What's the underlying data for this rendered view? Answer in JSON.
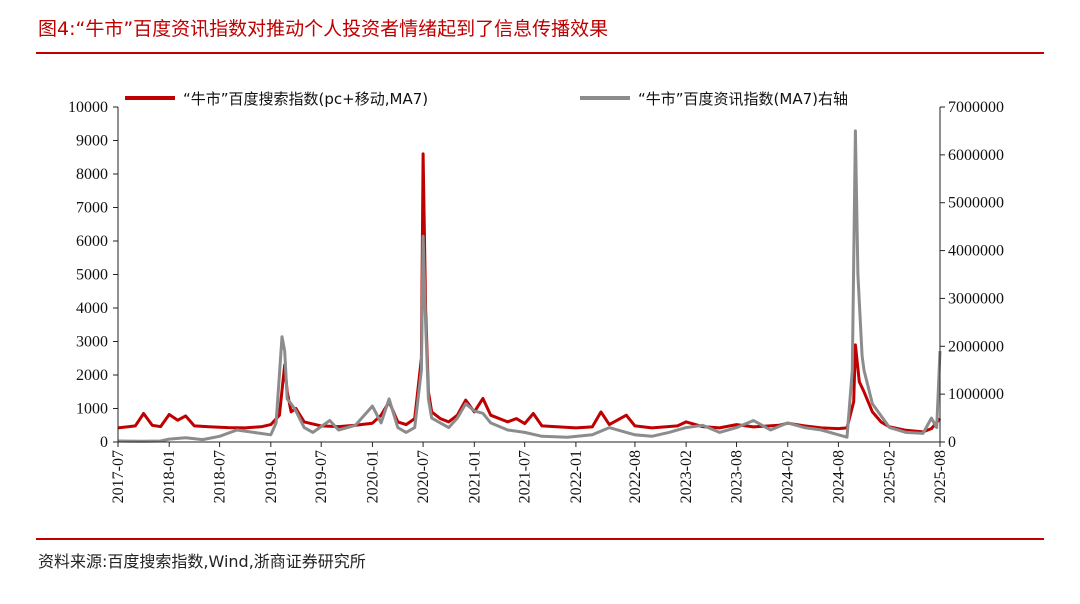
{
  "figure": {
    "title": "图4:“牛市”百度资讯指数对推动个人投资者情绪起到了信息传播效果",
    "source": "资料来源:百度搜索指数,Wind,浙商证券研究所"
  },
  "chart_data": {
    "type": "line",
    "title": "",
    "x_ticks": [
      "2017-07",
      "2018-01",
      "2018-07",
      "2019-01",
      "2019-07",
      "2020-01",
      "2020-07",
      "2021-01",
      "2021-07",
      "2022-01",
      "2022-08",
      "2023-02",
      "2023-08",
      "2024-02",
      "2024-08",
      "2025-02",
      "2025-08"
    ],
    "x_range": [
      "2017-07",
      "2025-08"
    ],
    "y_left": {
      "min": 0,
      "max": 10000,
      "ticks": [
        0,
        1000,
        2000,
        3000,
        4000,
        5000,
        6000,
        7000,
        8000,
        9000,
        10000
      ]
    },
    "y_right": {
      "min": 0,
      "max": 7000000,
      "ticks": [
        0,
        1000000,
        2000000,
        3000000,
        4000000,
        5000000,
        6000000,
        7000000
      ]
    },
    "legend_position": "top",
    "grid": false,
    "series": [
      {
        "name": "“牛市”百度搜索指数(pc+移动,MA7)",
        "axis": "left",
        "color": "#c00000",
        "points": [
          [
            "2017-07",
            420
          ],
          [
            "2017-09",
            480
          ],
          [
            "2017-10",
            850
          ],
          [
            "2017-11",
            500
          ],
          [
            "2017-12",
            460
          ],
          [
            "2018-01",
            820
          ],
          [
            "2018-02",
            650
          ],
          [
            "2018-03",
            780
          ],
          [
            "2018-04",
            480
          ],
          [
            "2018-06",
            450
          ],
          [
            "2018-08",
            430
          ],
          [
            "2018-10",
            420
          ],
          [
            "2018-12",
            460
          ],
          [
            "2019-01",
            520
          ],
          [
            "2019-02",
            800
          ],
          [
            "2019-02-20",
            2300
          ],
          [
            "2019-03",
            1500
          ],
          [
            "2019-03-15",
            900
          ],
          [
            "2019-04",
            1000
          ],
          [
            "2019-05",
            600
          ],
          [
            "2019-07",
            480
          ],
          [
            "2019-09",
            460
          ],
          [
            "2019-11",
            500
          ],
          [
            "2020-01",
            560
          ],
          [
            "2020-02",
            800
          ],
          [
            "2020-03",
            1200
          ],
          [
            "2020-04",
            600
          ],
          [
            "2020-05",
            520
          ],
          [
            "2020-06",
            700
          ],
          [
            "2020-06-25",
            2500
          ],
          [
            "2020-07",
            8600
          ],
          [
            "2020-07-10",
            4000
          ],
          [
            "2020-07-20",
            1500
          ],
          [
            "2020-08",
            900
          ],
          [
            "2020-09",
            700
          ],
          [
            "2020-10",
            600
          ],
          [
            "2020-11",
            800
          ],
          [
            "2020-12",
            1250
          ],
          [
            "2021-01",
            900
          ],
          [
            "2021-02",
            1300
          ],
          [
            "2021-03",
            800
          ],
          [
            "2021-05",
            600
          ],
          [
            "2021-06",
            700
          ],
          [
            "2021-07",
            550
          ],
          [
            "2021-08",
            850
          ],
          [
            "2021-09",
            480
          ],
          [
            "2022-01",
            420
          ],
          [
            "2022-03",
            450
          ],
          [
            "2022-04",
            900
          ],
          [
            "2022-05",
            520
          ],
          [
            "2022-07",
            800
          ],
          [
            "2022-08",
            480
          ],
          [
            "2022-10",
            420
          ],
          [
            "2023-01",
            480
          ],
          [
            "2023-02",
            600
          ],
          [
            "2023-04",
            460
          ],
          [
            "2023-06",
            420
          ],
          [
            "2023-08",
            520
          ],
          [
            "2023-10",
            450
          ],
          [
            "2024-01",
            500
          ],
          [
            "2024-02",
            560
          ],
          [
            "2024-04",
            480
          ],
          [
            "2024-06",
            420
          ],
          [
            "2024-08",
            400
          ],
          [
            "2024-09",
            420
          ],
          [
            "2024-09-25",
            1200
          ],
          [
            "2024-10",
            2900
          ],
          [
            "2024-10-15",
            1800
          ],
          [
            "2024-11",
            1500
          ],
          [
            "2024-12",
            900
          ],
          [
            "2025-01",
            600
          ],
          [
            "2025-02",
            450
          ],
          [
            "2025-04",
            350
          ],
          [
            "2025-06",
            300
          ],
          [
            "2025-07",
            400
          ],
          [
            "2025-08",
            700
          ]
        ]
      },
      {
        "name": "“牛市”百度资讯指数(MA7)右轴",
        "axis": "right",
        "color": "#8c8c8c",
        "points": [
          [
            "2017-07",
            20000
          ],
          [
            "2017-10",
            15000
          ],
          [
            "2017-12",
            20000
          ],
          [
            "2018-01",
            60000
          ],
          [
            "2018-03",
            90000
          ],
          [
            "2018-05",
            50000
          ],
          [
            "2018-07",
            120000
          ],
          [
            "2018-09",
            250000
          ],
          [
            "2018-11",
            200000
          ],
          [
            "2019-01",
            150000
          ],
          [
            "2019-01-20",
            400000
          ],
          [
            "2019-02",
            1400000
          ],
          [
            "2019-02-10",
            2200000
          ],
          [
            "2019-02-20",
            1900000
          ],
          [
            "2019-03",
            900000
          ],
          [
            "2019-03-15",
            800000
          ],
          [
            "2019-04",
            650000
          ],
          [
            "2019-05",
            300000
          ],
          [
            "2019-06",
            200000
          ],
          [
            "2019-08",
            450000
          ],
          [
            "2019-09",
            250000
          ],
          [
            "2019-11",
            350000
          ],
          [
            "2020-01",
            750000
          ],
          [
            "2020-02",
            400000
          ],
          [
            "2020-03",
            900000
          ],
          [
            "2020-04",
            300000
          ],
          [
            "2020-05",
            200000
          ],
          [
            "2020-06",
            300000
          ],
          [
            "2020-06-25",
            1500000
          ],
          [
            "2020-07",
            4300000
          ],
          [
            "2020-07-10",
            2500000
          ],
          [
            "2020-07-20",
            900000
          ],
          [
            "2020-08",
            500000
          ],
          [
            "2020-09",
            400000
          ],
          [
            "2020-10",
            300000
          ],
          [
            "2020-11",
            500000
          ],
          [
            "2020-12",
            800000
          ],
          [
            "2021-01",
            650000
          ],
          [
            "2021-02",
            600000
          ],
          [
            "2021-03",
            400000
          ],
          [
            "2021-05",
            250000
          ],
          [
            "2021-07",
            200000
          ],
          [
            "2021-09",
            120000
          ],
          [
            "2021-12",
            100000
          ],
          [
            "2022-03",
            150000
          ],
          [
            "2022-05",
            300000
          ],
          [
            "2022-07",
            200000
          ],
          [
            "2022-08",
            150000
          ],
          [
            "2022-10",
            120000
          ],
          [
            "2022-12",
            200000
          ],
          [
            "2023-02",
            300000
          ],
          [
            "2023-04",
            350000
          ],
          [
            "2023-06",
            200000
          ],
          [
            "2023-08",
            300000
          ],
          [
            "2023-10",
            450000
          ],
          [
            "2023-12",
            250000
          ],
          [
            "2024-02",
            400000
          ],
          [
            "2024-04",
            300000
          ],
          [
            "2024-06",
            250000
          ],
          [
            "2024-08",
            150000
          ],
          [
            "2024-09",
            100000
          ],
          [
            "2024-09-20",
            1500000
          ],
          [
            "2024-10",
            6500000
          ],
          [
            "2024-10-10",
            3500000
          ],
          [
            "2024-10-25",
            1800000
          ],
          [
            "2024-11",
            1500000
          ],
          [
            "2024-12",
            800000
          ],
          [
            "2025-01",
            550000
          ],
          [
            "2025-02",
            300000
          ],
          [
            "2025-04",
            200000
          ],
          [
            "2025-06",
            180000
          ],
          [
            "2025-07",
            500000
          ],
          [
            "2025-07-20",
            300000
          ],
          [
            "2025-08",
            1900000
          ]
        ]
      }
    ]
  }
}
